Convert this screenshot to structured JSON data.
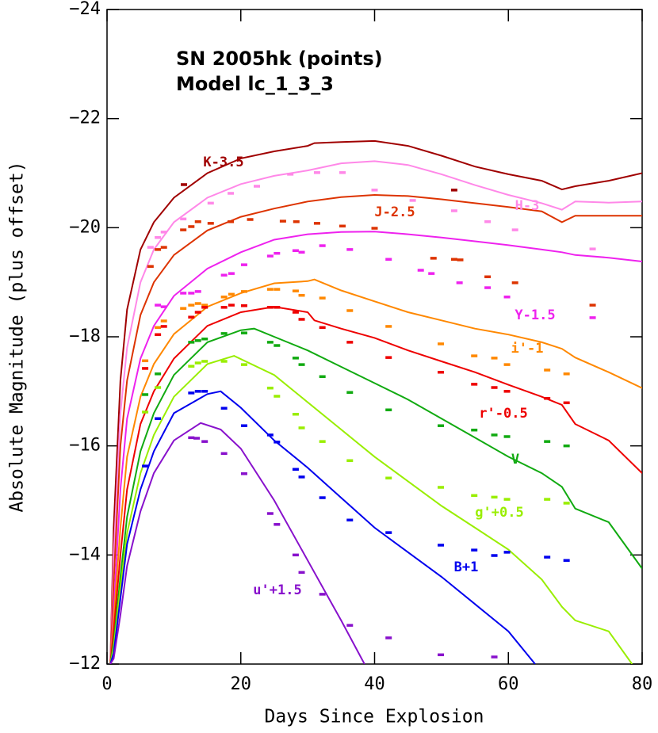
{
  "chart_data": {
    "type": "line",
    "annotations": [
      "SN 2005hk (points)",
      "Model lc_1_3_3"
    ],
    "x_label": "Days Since Explosion",
    "y_label": "Absolute Magnitude (plus offset)",
    "xlim": [
      0,
      80
    ],
    "xticks": [
      0,
      20,
      40,
      60,
      80
    ],
    "ylim": [
      -12,
      -24
    ],
    "yticks": [
      {
        "value": -24,
        "label": "−24"
      },
      {
        "value": -22,
        "label": "−22"
      },
      {
        "value": -20,
        "label": "−20"
      },
      {
        "value": -18,
        "label": "−18"
      },
      {
        "value": -16,
        "label": "−16"
      },
      {
        "value": -14,
        "label": "−14"
      },
      {
        "value": -12,
        "label": "−12"
      }
    ],
    "series": [
      {
        "name": "K-3.5",
        "color": "#a00000",
        "x": [
          0.5,
          1,
          2,
          3,
          5,
          7,
          10,
          15,
          20,
          25,
          30,
          31,
          35,
          40,
          45,
          50,
          55,
          60,
          65,
          68,
          70,
          75,
          80
        ],
        "values": [
          -12,
          -14.5,
          -17.2,
          -18.5,
          -19.6,
          -20.1,
          -20.55,
          -21.0,
          -21.27,
          -21.4,
          -21.5,
          -21.55,
          -21.57,
          -21.59,
          -21.5,
          -21.32,
          -21.12,
          -20.98,
          -20.86,
          -20.7,
          -20.76,
          -20.86,
          -21.0
        ],
        "points_x": [
          11.5,
          51.9
        ],
        "points_values": [
          -20.79,
          -20.69
        ]
      },
      {
        "name": "H-3",
        "color": "#ff88e8",
        "x": [
          0.5,
          1,
          2,
          3,
          5,
          7,
          10,
          15,
          20,
          25,
          30,
          35,
          40,
          45,
          50,
          55,
          60,
          65,
          68,
          70,
          75,
          80
        ],
        "values": [
          -12,
          -14,
          -16.6,
          -17.8,
          -19.0,
          -19.6,
          -20.1,
          -20.55,
          -20.8,
          -20.95,
          -21.05,
          -21.18,
          -21.22,
          -21.15,
          -20.98,
          -20.78,
          -20.6,
          -20.45,
          -20.33,
          -20.48,
          -20.46,
          -20.48
        ],
        "points_x": [
          6.5,
          7.6,
          8.5,
          11.4,
          15.5,
          18.5,
          22.4,
          27.4,
          31.4,
          35.2,
          40.0,
          45.7,
          51.9,
          56.9,
          61.0,
          72.6
        ],
        "points_values": [
          -19.64,
          -19.82,
          -19.92,
          -20.16,
          -20.45,
          -20.63,
          -20.76,
          -20.98,
          -21.01,
          -21.01,
          -20.69,
          -20.5,
          -20.31,
          -20.11,
          -19.96,
          -19.61
        ]
      },
      {
        "name": "J-2.5",
        "color": "#dd3300",
        "x": [
          0.5,
          1,
          2,
          3,
          5,
          7,
          10,
          15,
          20,
          25,
          30,
          35,
          40,
          45,
          50,
          55,
          60,
          65,
          68,
          70,
          75,
          80
        ],
        "values": [
          -12,
          -13.5,
          -16,
          -17.2,
          -18.4,
          -19.0,
          -19.5,
          -19.95,
          -20.2,
          -20.35,
          -20.48,
          -20.56,
          -20.6,
          -20.58,
          -20.52,
          -20.45,
          -20.38,
          -20.3,
          -20.1,
          -20.22,
          -20.22,
          -20.22
        ],
        "points_x": [
          6.5,
          7.6,
          8.5,
          11.4,
          12.6,
          13.6,
          15.5,
          18.5,
          21.4,
          26.3,
          28.3,
          31.4,
          35.2,
          40.0,
          48.8,
          51.9,
          52.8,
          56.9,
          61.0,
          72.6
        ],
        "points_values": [
          -19.29,
          -19.6,
          -19.64,
          -19.96,
          -20.02,
          -20.11,
          -20.08,
          -20.11,
          -20.15,
          -20.12,
          -20.11,
          -20.08,
          -20.03,
          -19.99,
          -19.44,
          -19.42,
          -19.41,
          -19.1,
          -18.99,
          -18.58
        ]
      },
      {
        "name": "Y-1.5",
        "color": "#ee22ee",
        "x": [
          0.5,
          1,
          2,
          3,
          5,
          7,
          10,
          15,
          20,
          25,
          30,
          35,
          40,
          45,
          50,
          55,
          60,
          65,
          68,
          70,
          75,
          80
        ],
        "values": [
          -12,
          -13,
          -15.2,
          -16.5,
          -17.6,
          -18.2,
          -18.75,
          -19.25,
          -19.55,
          -19.78,
          -19.88,
          -19.92,
          -19.93,
          -19.88,
          -19.82,
          -19.75,
          -19.68,
          -19.6,
          -19.55,
          -19.5,
          -19.45,
          -19.38
        ],
        "points_x": [
          7.6,
          8.5,
          11.4,
          12.6,
          13.6,
          17.5,
          18.6,
          20.5,
          24.4,
          25.4,
          28.2,
          29.1,
          32.2,
          36.3,
          42.1,
          46.9,
          48.5,
          52.7,
          56.9,
          59.8,
          72.6
        ],
        "points_values": [
          -18.58,
          -18.55,
          -18.8,
          -18.8,
          -18.83,
          -19.13,
          -19.16,
          -19.32,
          -19.48,
          -19.53,
          -19.58,
          -19.55,
          -19.67,
          -19.6,
          -19.42,
          -19.22,
          -19.16,
          -18.99,
          -18.9,
          -18.73,
          -18.35
        ]
      },
      {
        "name": "i'-1",
        "color": "#ff8800",
        "x": [
          0.5,
          1,
          2,
          3,
          5,
          7,
          10,
          15,
          20,
          25,
          30,
          31,
          35,
          40,
          45,
          50,
          55,
          60,
          65,
          68,
          70,
          75,
          80
        ],
        "values": [
          -12,
          -12.8,
          -14.5,
          -15.8,
          -16.9,
          -17.5,
          -18.05,
          -18.55,
          -18.8,
          -18.98,
          -19.02,
          -19.05,
          -18.85,
          -18.65,
          -18.45,
          -18.3,
          -18.15,
          -18.04,
          -17.9,
          -17.78,
          -17.62,
          -17.35,
          -17.06
        ],
        "points_x": [
          5.7,
          7.6,
          8.5,
          11.4,
          12.6,
          13.6,
          14.6,
          17.5,
          18.6,
          20.5,
          24.4,
          25.4,
          28.2,
          29.1,
          32.2,
          36.3,
          42.1,
          49.9,
          54.9,
          57.9,
          59.8,
          65.8,
          68.7
        ],
        "points_values": [
          -17.56,
          -18.17,
          -18.29,
          -18.52,
          -18.58,
          -18.61,
          -18.58,
          -18.73,
          -18.78,
          -18.83,
          -18.87,
          -18.87,
          -18.84,
          -18.76,
          -18.71,
          -18.48,
          -18.19,
          -17.87,
          -17.65,
          -17.61,
          -17.49,
          -17.39,
          -17.32
        ]
      },
      {
        "name": "r'-0.5",
        "color": "#ee0000",
        "x": [
          0.5,
          1,
          2,
          3,
          5,
          7,
          10,
          15,
          20,
          25,
          30,
          31,
          35,
          40,
          45,
          50,
          55,
          60,
          65,
          68,
          70,
          75,
          80
        ],
        "values": [
          -12,
          -12.6,
          -14,
          -15.2,
          -16.4,
          -17.0,
          -17.6,
          -18.2,
          -18.45,
          -18.55,
          -18.45,
          -18.3,
          -18.15,
          -17.98,
          -17.75,
          -17.55,
          -17.35,
          -17.12,
          -16.9,
          -16.75,
          -16.4,
          -16.1,
          -15.5
        ],
        "points_x": [
          5.7,
          7.6,
          8.5,
          12.6,
          13.6,
          14.6,
          17.5,
          18.6,
          20.5,
          24.4,
          25.4,
          28.2,
          29.1,
          32.2,
          36.3,
          42.1,
          49.9,
          54.9,
          57.9,
          59.8,
          65.8,
          68.7
        ],
        "points_values": [
          -17.42,
          -18.04,
          -18.19,
          -18.36,
          -18.45,
          -18.54,
          -18.54,
          -18.58,
          -18.57,
          -18.54,
          -18.54,
          -18.45,
          -18.32,
          -18.17,
          -17.9,
          -17.62,
          -17.35,
          -17.13,
          -17.07,
          -17.0,
          -16.87,
          -16.79
        ]
      },
      {
        "name": "V",
        "color": "#11aa11",
        "x": [
          0.5,
          1,
          2,
          3,
          5,
          7,
          10,
          15,
          20,
          22,
          25,
          30,
          35,
          40,
          45,
          50,
          55,
          60,
          65,
          68,
          70,
          75,
          80
        ],
        "values": [
          -12,
          -12.4,
          -13.6,
          -14.7,
          -15.9,
          -16.6,
          -17.3,
          -17.9,
          -18.12,
          -18.15,
          -18.0,
          -17.75,
          -17.45,
          -17.15,
          -16.85,
          -16.5,
          -16.15,
          -15.8,
          -15.5,
          -15.25,
          -14.85,
          -14.6,
          -13.75
        ],
        "points_x": [
          5.7,
          7.6,
          12.6,
          13.6,
          14.6,
          17.5,
          20.5,
          24.4,
          25.4,
          28.2,
          29.1,
          32.2,
          36.3,
          42.1,
          49.9,
          54.9,
          57.9,
          59.8,
          65.8,
          68.7
        ],
        "points_values": [
          -16.94,
          -17.32,
          -17.9,
          -17.93,
          -17.96,
          -18.06,
          -18.07,
          -17.9,
          -17.84,
          -17.61,
          -17.49,
          -17.27,
          -16.98,
          -16.66,
          -16.37,
          -16.29,
          -16.2,
          -16.17,
          -16.08,
          -16.0
        ]
      },
      {
        "name": "g'+0.5",
        "color": "#99ee00",
        "x": [
          0.5,
          1,
          2,
          3,
          5,
          7,
          10,
          15,
          19,
          25,
          30,
          35,
          40,
          45,
          50,
          55,
          60,
          65,
          68,
          70,
          75,
          78.5
        ],
        "values": [
          -12,
          -12.3,
          -13.4,
          -14.4,
          -15.5,
          -16.2,
          -16.9,
          -17.5,
          -17.65,
          -17.3,
          -16.8,
          -16.3,
          -15.8,
          -15.35,
          -14.9,
          -14.5,
          -14.1,
          -13.55,
          -13.05,
          -12.8,
          -12.6,
          -12.0
        ],
        "points_x": [
          5.7,
          7.6,
          12.6,
          13.6,
          14.6,
          17.5,
          20.5,
          24.4,
          25.4,
          28.2,
          29.1,
          32.2,
          36.3,
          42.1,
          49.9,
          54.9,
          57.9,
          59.8,
          65.8,
          68.7
        ],
        "points_values": [
          -16.62,
          -17.07,
          -17.46,
          -17.52,
          -17.55,
          -17.55,
          -17.49,
          -17.06,
          -16.91,
          -16.58,
          -16.33,
          -16.08,
          -15.73,
          -15.41,
          -15.24,
          -15.09,
          -15.06,
          -15.02,
          -15.02,
          -14.95
        ]
      },
      {
        "name": "B+1",
        "color": "#0000ee",
        "x": [
          0.5,
          1,
          2,
          3,
          5,
          7,
          10,
          15,
          17,
          20,
          25,
          30,
          35,
          40,
          45,
          50,
          55,
          60,
          64
        ],
        "values": [
          -12,
          -12.2,
          -13.2,
          -14.2,
          -15.2,
          -15.9,
          -16.6,
          -16.95,
          -17.0,
          -16.7,
          -16.1,
          -15.6,
          -15.05,
          -14.5,
          -14.05,
          -13.6,
          -13.1,
          -12.6,
          -12.0
        ],
        "points_x": [
          5.7,
          7.6,
          12.6,
          13.6,
          14.6,
          17.5,
          20.5,
          24.4,
          25.4,
          28.2,
          29.1,
          32.2,
          36.3,
          42.1,
          49.9,
          54.9,
          57.9,
          59.8,
          65.8,
          68.7
        ],
        "points_values": [
          -15.63,
          -16.5,
          -16.97,
          -17.0,
          -17.0,
          -16.69,
          -16.37,
          -16.2,
          -16.07,
          -15.57,
          -15.43,
          -15.05,
          -14.64,
          -14.41,
          -14.18,
          -14.09,
          -13.99,
          -14.05,
          -13.96,
          -13.9
        ]
      },
      {
        "name": "u'+1.5",
        "color": "#8811cc",
        "x": [
          0.5,
          1,
          2,
          3,
          5,
          7,
          10,
          14,
          17,
          20,
          25,
          30,
          35,
          38.5
        ],
        "values": [
          -12,
          -12.1,
          -12.9,
          -13.8,
          -14.8,
          -15.5,
          -16.1,
          -16.42,
          -16.3,
          -15.95,
          -15.0,
          -13.9,
          -12.8,
          -12.0
        ],
        "points_x": [
          12.6,
          13.4,
          14.6,
          17.5,
          20.5,
          24.4,
          25.4,
          28.2,
          29.1,
          32.2,
          36.3,
          42.1,
          49.9,
          57.9
        ],
        "points_values": [
          -16.15,
          -16.14,
          -16.08,
          -15.86,
          -15.49,
          -14.76,
          -14.56,
          -14.0,
          -13.68,
          -13.28,
          -12.71,
          -12.48,
          -12.17,
          -12.13
        ]
      }
    ]
  }
}
